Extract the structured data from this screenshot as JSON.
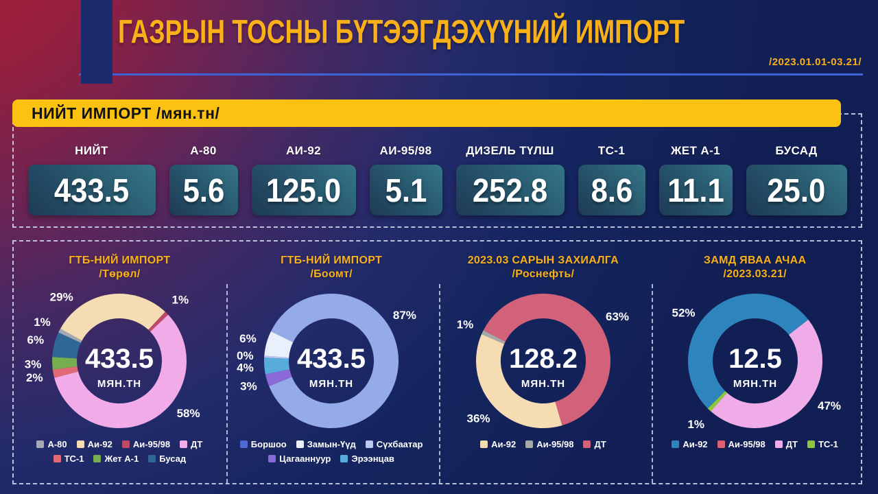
{
  "header": {
    "title": "ГАЗРЫН ТОСНЫ БҮТЭЭГДЭХҮҮНИЙ ИМПОРТ",
    "date_range": "/2023.01.01-03.21/"
  },
  "banner": {
    "label": "НИЙТ ИМПОРТ /мян.тн/"
  },
  "summary_cards": [
    {
      "label": "НИЙТ",
      "value": "433.5"
    },
    {
      "label": "А-80",
      "value": "5.6"
    },
    {
      "label": "АИ-92",
      "value": "125.0"
    },
    {
      "label": "АИ-95/98",
      "value": "5.1"
    },
    {
      "label": "ДИЗЕЛЬ ТҮЛШ",
      "value": "252.8"
    },
    {
      "label": "ТС-1",
      "value": "8.6"
    },
    {
      "label": "ЖЕТ А-1",
      "value": "11.1"
    },
    {
      "label": "БУСАД",
      "value": "25.0"
    }
  ],
  "chart_data": [
    {
      "type": "pie",
      "title": "ГТБ-НИЙ ИМПОРТ",
      "subtitle": "/Төрөл/",
      "center_value": "433.5",
      "center_unit": "МЯН.ТН",
      "rotation_deg": 295,
      "legend_position": "bottom",
      "segments": [
        {
          "name": "А-80",
          "pct": 1,
          "label": "1%",
          "color": "#A5A9B4"
        },
        {
          "name": "Аи-92",
          "pct": 29,
          "label": "29%",
          "color": "#F6DCB2",
          "label_angle": 318
        },
        {
          "name": "Аи-95/98",
          "pct": 1,
          "label": "1%",
          "color": "#BE4A63"
        },
        {
          "name": "ДТ",
          "pct": 58,
          "label": "58%",
          "color": "#F0ABE8",
          "label_angle": 127
        },
        {
          "name": "ТС-1",
          "pct": 2,
          "label": "2%",
          "color": "#E16A74"
        },
        {
          "name": "Жет А-1",
          "pct": 3,
          "label": "3%",
          "color": "#74AE4E"
        },
        {
          "name": "Бусад",
          "pct": 6,
          "label": "6%",
          "color": "#2F6796"
        }
      ],
      "draw_order": [
        "А-80",
        "Аи-92",
        "Аи-95/98",
        "ДТ",
        "ТС-1",
        "Жет А-1",
        "Бусад"
      ],
      "legend_rows": [
        [
          "А-80",
          "Аи-92",
          "Аи-95/98",
          "ДТ"
        ],
        [
          "ТС-1",
          "Жет А-1",
          "Бусад"
        ]
      ]
    },
    {
      "type": "pie",
      "title": "ГТБ-НИЙ ИМПОРТ",
      "subtitle": "/Боомт/",
      "center_value": "433.5",
      "center_unit": "МЯН.ТН",
      "rotation_deg": 296,
      "legend_position": "bottom",
      "segments": [
        {
          "name": "Боршоо",
          "pct": 87,
          "label": "87%",
          "color": "#95AAE8",
          "legend_color": "#4D69D2",
          "label_angle": 58
        },
        {
          "name": "Замын-Үүд",
          "pct": 6,
          "label": "6%",
          "color": "#E9EFFB"
        },
        {
          "name": "Сүхбаатар",
          "pct": 0,
          "label": "0%",
          "color": "#BCC8EE"
        },
        {
          "name": "Цагааннуур",
          "pct": 3,
          "label": "3%",
          "color": "#8A68D6"
        },
        {
          "name": "Эрээнцав",
          "pct": 4,
          "label": "4%",
          "color": "#57ACDC"
        }
      ],
      "draw_order": [
        "Боршоо",
        "Цагааннуур",
        "Эрээнцав",
        "Сүхбаатар",
        "Замын-Үүд"
      ],
      "legend_rows": [
        [
          "Боршоо",
          "Замын-Үүд",
          "Сүхбаатар"
        ],
        [
          "Цагааннуур",
          "Эрээнцав"
        ]
      ]
    },
    {
      "type": "pie",
      "title": "2023.03 САРЫН ЗАХИАЛГА",
      "subtitle": "/Роснефть/",
      "center_value": "128.2",
      "center_unit": "МЯН.ТН",
      "rotation_deg": 297,
      "legend_position": "bottom",
      "segments": [
        {
          "name": "Аи-92",
          "pct": 36,
          "label": "36%",
          "color": "#F6DCB2"
        },
        {
          "name": "Аи-95/98",
          "pct": 1,
          "label": "1%",
          "color": "#A8A8A8"
        },
        {
          "name": "ДТ",
          "pct": 63,
          "label": "63%",
          "color": "#D2627A",
          "label_angle": 59
        }
      ],
      "draw_order": [
        "ДТ",
        "Аи-92",
        "Аи-95/98"
      ],
      "legend_rows": [
        [
          "Аи-92",
          "Аи-95/98",
          "ДТ"
        ]
      ]
    },
    {
      "type": "pie",
      "title": "ЗАМД ЯВАА АЧАА",
      "subtitle": "/2023.03.21/",
      "center_value": "12.5",
      "center_unit": "МЯН.ТН",
      "rotation_deg": 225,
      "legend_position": "bottom",
      "segments": [
        {
          "name": "Аи-92",
          "pct": 52,
          "label": "52%",
          "color": "#2E85BD",
          "label_angle": 304
        },
        {
          "name": "Аи-95/98",
          "pct": 0,
          "label": null,
          "color": "#E0606E"
        },
        {
          "name": "ДТ",
          "pct": 47,
          "label": "47%",
          "color": "#F0ACE8",
          "label_angle": 121
        },
        {
          "name": "ТС-1",
          "pct": 1,
          "label": "1%",
          "color": "#8CC63F"
        }
      ],
      "draw_order": [
        "Аи-92",
        "Аи-95/98",
        "ДТ",
        "ТС-1"
      ],
      "legend_rows": [
        [
          "Аи-92",
          "Аи-95/98",
          "ДТ",
          "ТС-1"
        ]
      ]
    }
  ]
}
